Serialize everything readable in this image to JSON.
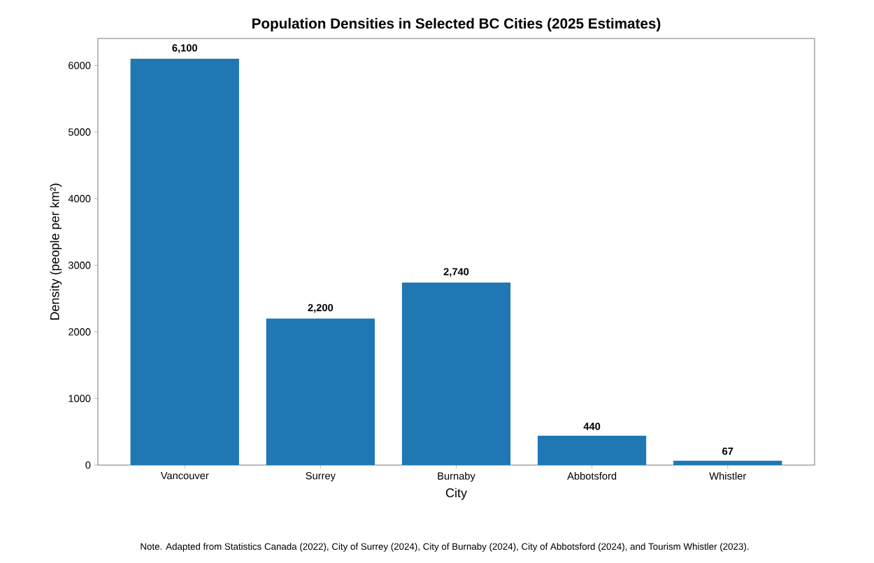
{
  "chart_data": {
    "type": "bar",
    "title": "Population Densities in Selected BC Cities (2025 Estimates)",
    "xlabel": "City",
    "ylabel": "Density (people per km²)",
    "categories": [
      "Vancouver",
      "Surrey",
      "Burnaby",
      "Abbotsford",
      "Whistler"
    ],
    "values": [
      6100,
      2200,
      2740,
      440,
      67
    ],
    "value_labels": [
      "6,100",
      "2,200",
      "2,740",
      "440",
      "67"
    ],
    "color": "#1f77b4",
    "ylim": [
      0,
      6405
    ],
    "yticks": [
      0,
      1000,
      2000,
      3000,
      4000,
      5000,
      6000
    ],
    "grid": false,
    "annotations": [
      "Note. Adapted from Statistics Canada (2022), City of Surrey (2024), City of Burnaby (2024), City of Abbotsford (2024), and Tourism Whistler (2023)."
    ]
  }
}
